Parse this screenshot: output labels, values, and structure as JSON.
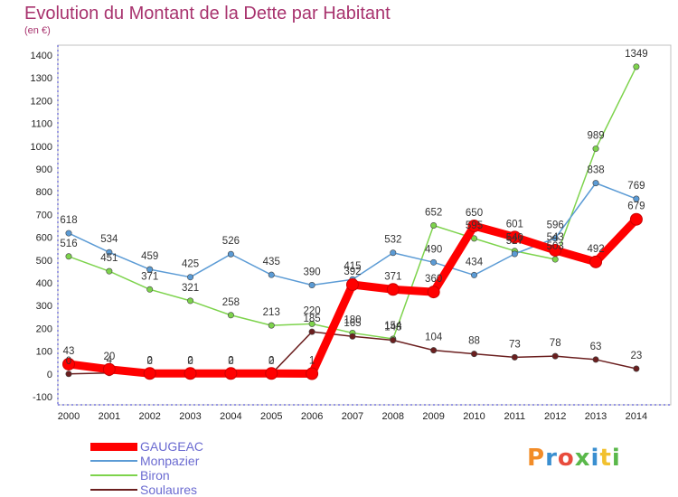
{
  "header": {
    "title": "Evolution du Montant de la Dette par Habitant",
    "subtitle": "(en €)"
  },
  "logo": {
    "text": "Proxiti",
    "colors": [
      "#f28c28",
      "#3a8fd0",
      "#e84c3d",
      "#5ab84a",
      "#3a8fd0",
      "#f2c12e",
      "#5ab84a"
    ]
  },
  "chart_data": {
    "type": "line",
    "title": "Evolution du Montant de la Dette par Habitant",
    "subtitle": "(en €)",
    "x": [
      "2000",
      "2001",
      "2002",
      "2003",
      "2004",
      "2005",
      "2006",
      "2007",
      "2008",
      "2009",
      "2010",
      "2011",
      "2012",
      "2013",
      "2014"
    ],
    "ylim": [
      -100,
      1400
    ],
    "yticks": [
      -100,
      0,
      100,
      200,
      300,
      400,
      500,
      600,
      700,
      800,
      900,
      1000,
      1100,
      1200,
      1300,
      1400
    ],
    "grid": false,
    "legend_position": "bottom-left",
    "series": [
      {
        "name": "GAUGEAC",
        "color": "#ff0000",
        "values": [
          43,
          20,
          2,
          2,
          2,
          2,
          1,
          392,
          371,
          360,
          650,
          601,
          543,
          492,
          679
        ],
        "labels": [
          "43",
          "20",
          "2",
          "2",
          "2",
          "2",
          "1",
          "392",
          "371",
          "360",
          "650",
          "601",
          "543",
          "492",
          "679"
        ]
      },
      {
        "name": "Monpazier",
        "color": "#5b9bd5",
        "values": [
          618,
          534,
          459,
          425,
          526,
          435,
          390,
          415,
          532,
          490,
          434,
          527,
          596,
          838,
          769
        ],
        "labels": [
          "618",
          "534",
          "459",
          "425",
          "526",
          "435",
          "390",
          "415",
          "532",
          "490",
          "434",
          "527",
          "596",
          "838",
          "769"
        ]
      },
      {
        "name": "Biron",
        "color": "#7dd34c",
        "values": [
          516,
          451,
          371,
          321,
          258,
          213,
          220,
          180,
          154,
          652,
          595,
          540,
          503,
          989,
          1349
        ],
        "labels": [
          "516",
          "451",
          "371",
          "321",
          "258",
          "213",
          "220",
          "180",
          "154",
          "652",
          "595",
          "540",
          "503",
          "989",
          "1349"
        ]
      },
      {
        "name": "Soulaures",
        "color": "#6b1f1f",
        "values": [
          0,
          4,
          0,
          0,
          0,
          0,
          185,
          165,
          148,
          104,
          88,
          73,
          78,
          63,
          23
        ],
        "labels": [
          "0",
          "4",
          "0",
          "0",
          "0",
          "0",
          "185",
          "165",
          "148",
          "104",
          "88",
          "73",
          "78",
          "63",
          "23"
        ]
      }
    ]
  }
}
